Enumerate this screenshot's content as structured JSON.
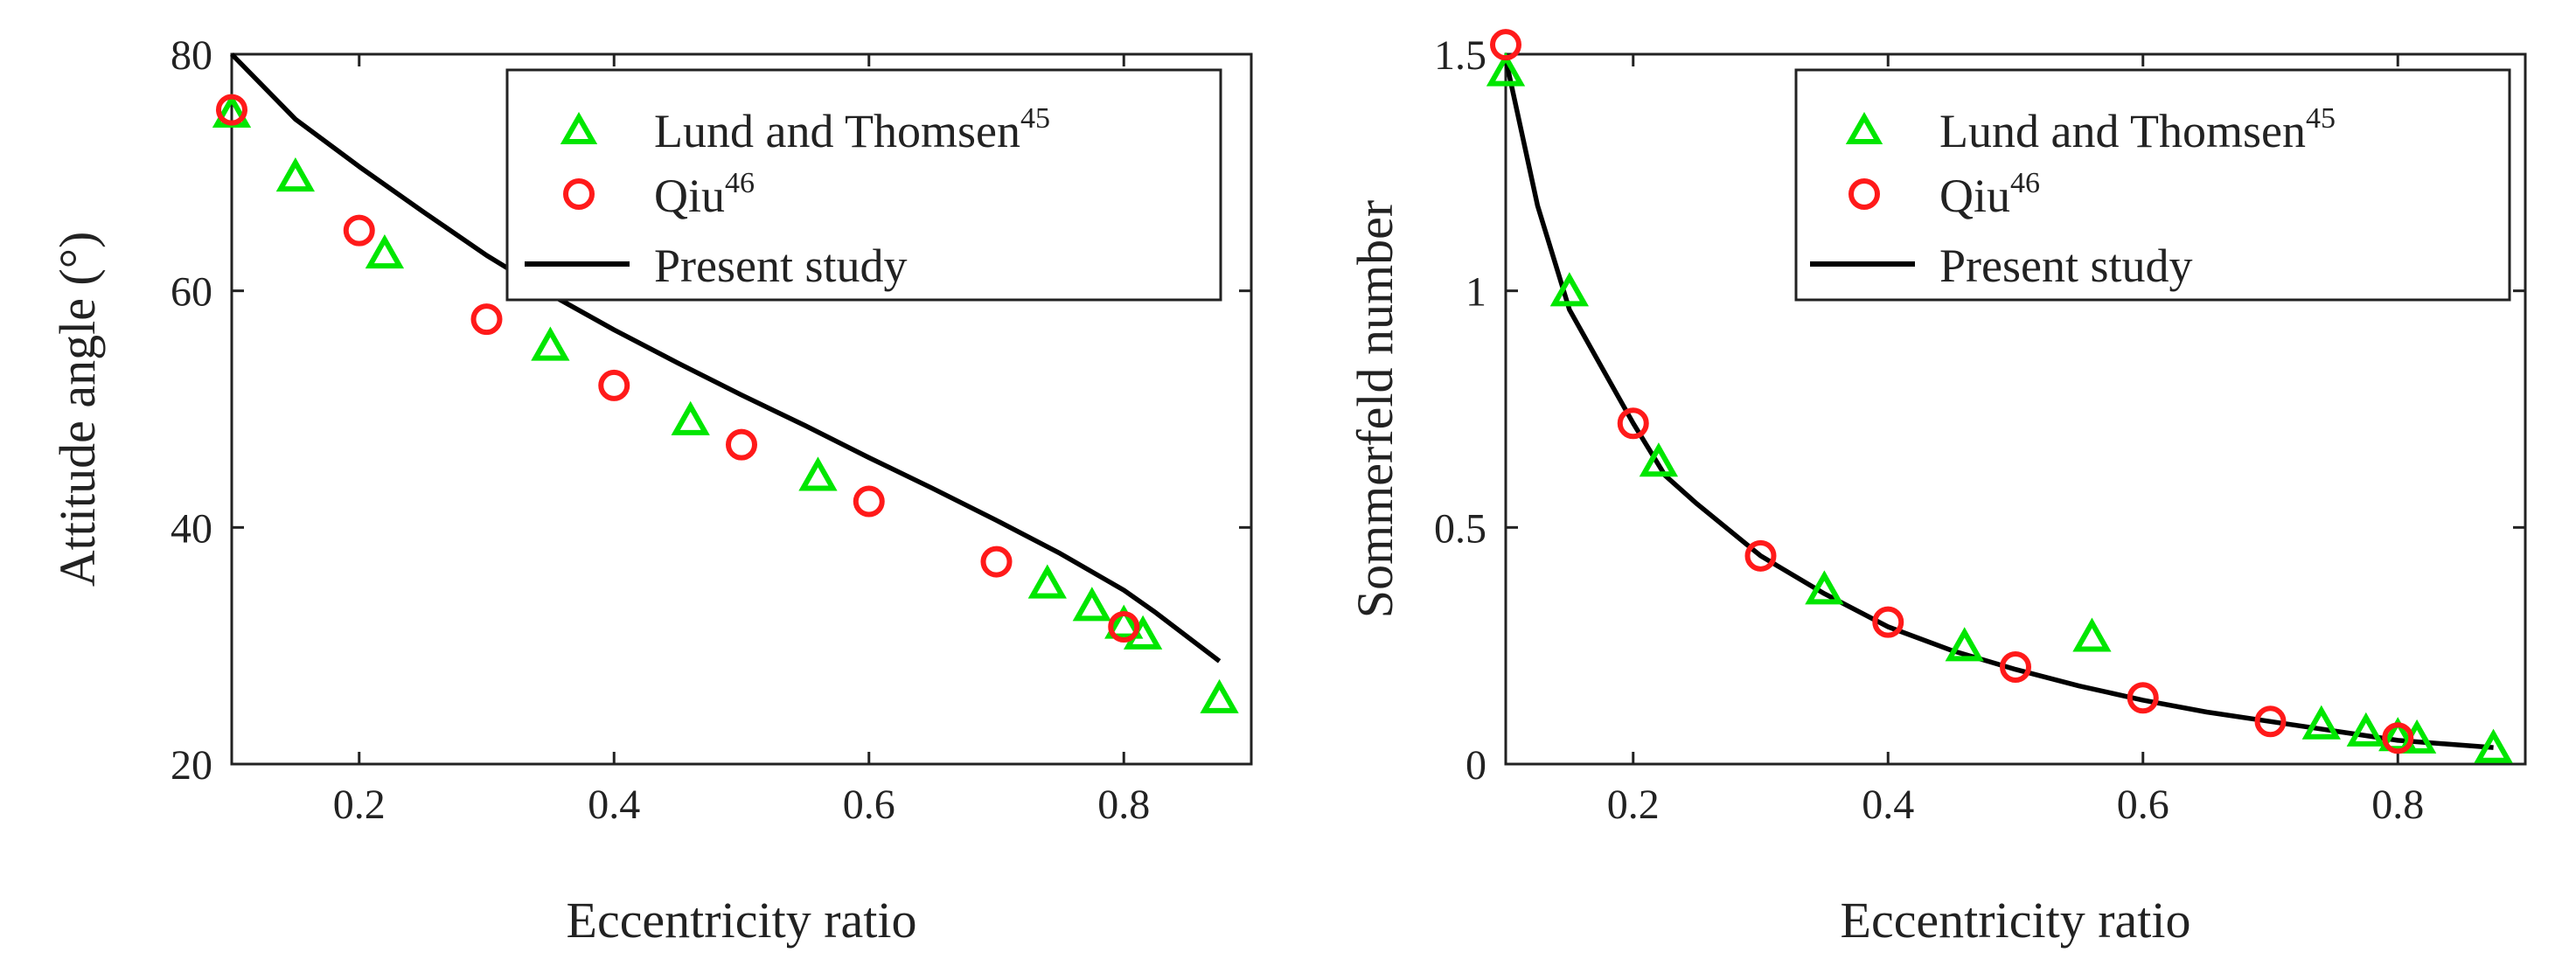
{
  "chart_data": [
    {
      "type": "line",
      "xlabel": "Eccentricity ratio",
      "ylabel": "Attitude angle (°)",
      "xlim": [
        0.1,
        0.9
      ],
      "ylim": [
        20,
        80
      ],
      "xticks": [
        0.2,
        0.4,
        0.6,
        0.8
      ],
      "xtick_labels": [
        "0.2",
        "0.4",
        "0.6",
        "0.8"
      ],
      "yticks": [
        20,
        40,
        60,
        80
      ],
      "ytick_labels": [
        "20",
        "40",
        "60",
        "80"
      ],
      "legend_position": "top-right",
      "series": [
        {
          "name": "Lund and Thomsen",
          "ref": "45",
          "marker": "triangle",
          "color": "#00e600",
          "x": [
            0.1,
            0.15,
            0.22,
            0.35,
            0.46,
            0.56,
            0.74,
            0.775,
            0.8,
            0.815,
            0.875
          ],
          "y": [
            74.9,
            69.5,
            63.0,
            55.2,
            48.9,
            44.2,
            35.1,
            33.2,
            31.7,
            30.8,
            25.4
          ]
        },
        {
          "name": "Qiu",
          "ref": "46",
          "marker": "circle",
          "color": "#ff1a1a",
          "x": [
            0.1,
            0.2,
            0.3,
            0.4,
            0.5,
            0.6,
            0.7,
            0.8
          ],
          "y": [
            75.3,
            65.1,
            57.6,
            52.0,
            47.0,
            42.2,
            37.1,
            31.6
          ]
        },
        {
          "name": "Present study",
          "marker": "line",
          "color": "#000000",
          "x": [
            0.1,
            0.15,
            0.2,
            0.25,
            0.3,
            0.35,
            0.4,
            0.45,
            0.5,
            0.55,
            0.6,
            0.65,
            0.7,
            0.75,
            0.8,
            0.825,
            0.875
          ],
          "y": [
            80.0,
            74.5,
            70.5,
            66.7,
            63.0,
            59.7,
            56.7,
            53.9,
            51.2,
            48.6,
            45.9,
            43.3,
            40.6,
            37.8,
            34.7,
            32.8,
            28.7
          ]
        }
      ]
    },
    {
      "type": "line",
      "xlabel": "Eccentricity ratio",
      "ylabel": "Sommerfeld number",
      "xlim": [
        0.1,
        0.9
      ],
      "ylim": [
        0,
        1.5
      ],
      "xticks": [
        0.2,
        0.4,
        0.6,
        0.8
      ],
      "xtick_labels": [
        "0.2",
        "0.4",
        "0.6",
        "0.8"
      ],
      "yticks": [
        0,
        0.5,
        1,
        1.5
      ],
      "ytick_labels": [
        "0",
        "0.5",
        "1",
        "1.5"
      ],
      "legend_position": "top-right",
      "series": [
        {
          "name": "Lund and Thomsen",
          "ref": "45",
          "marker": "triangle",
          "color": "#00e600",
          "x": [
            0.1,
            0.15,
            0.22,
            0.35,
            0.46,
            0.56,
            0.74,
            0.775,
            0.8,
            0.815,
            0.875
          ],
          "y": [
            1.46,
            0.995,
            0.635,
            0.365,
            0.245,
            0.265,
            0.08,
            0.065,
            0.055,
            0.05,
            0.03
          ]
        },
        {
          "name": "Qiu",
          "ref": "46",
          "marker": "circle",
          "color": "#ff1a1a",
          "x": [
            0.1,
            0.2,
            0.3,
            0.4,
            0.5,
            0.6,
            0.7,
            0.8
          ],
          "y": [
            1.52,
            0.72,
            0.44,
            0.3,
            0.205,
            0.14,
            0.09,
            0.055
          ]
        },
        {
          "name": "Present study",
          "marker": "line",
          "color": "#000000",
          "x": [
            0.1,
            0.125,
            0.15,
            0.175,
            0.2,
            0.225,
            0.25,
            0.3,
            0.35,
            0.4,
            0.45,
            0.5,
            0.55,
            0.6,
            0.65,
            0.7,
            0.75,
            0.8,
            0.875
          ],
          "y": [
            1.49,
            1.18,
            0.96,
            0.84,
            0.72,
            0.61,
            0.55,
            0.44,
            0.36,
            0.29,
            0.24,
            0.2,
            0.165,
            0.135,
            0.11,
            0.09,
            0.07,
            0.05,
            0.035
          ]
        }
      ]
    }
  ]
}
